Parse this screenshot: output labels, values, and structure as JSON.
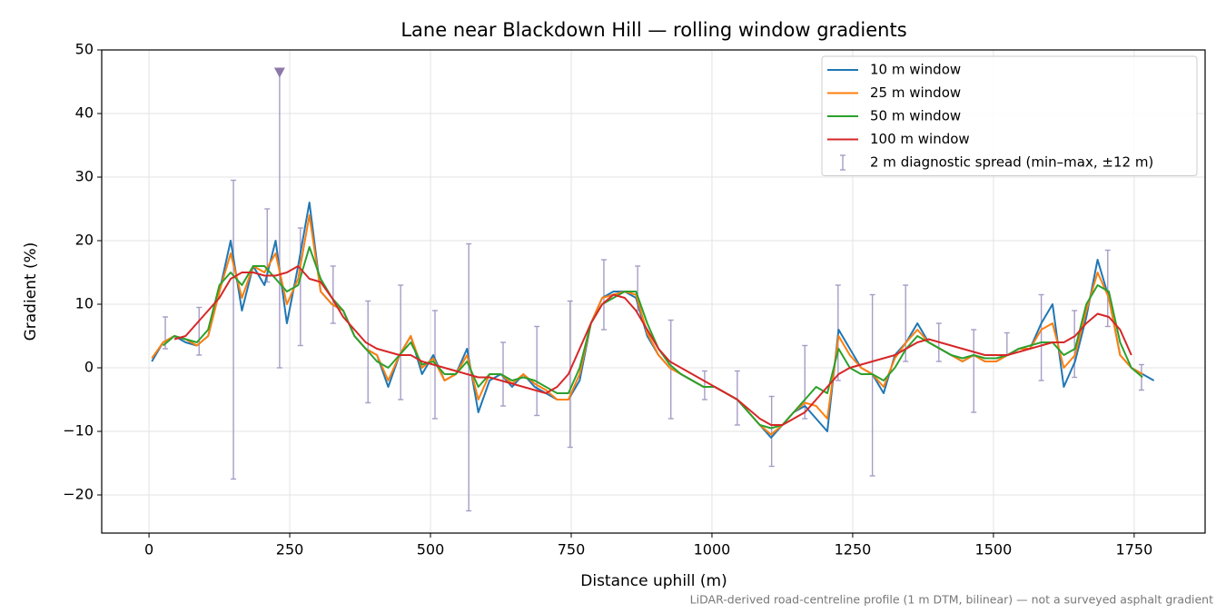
{
  "chart_data": {
    "type": "line",
    "title": "Lane near Blackdown Hill — rolling window gradients",
    "x_label": "Distance uphill (m)",
    "y_label": "Gradient (%)",
    "footnote": "LiDAR-derived road-centreline profile (1 m DTM, bilinear) — not a surveyed asphalt gradient",
    "xlim": [
      -84,
      1876
    ],
    "ylim": [
      -26,
      50
    ],
    "xticks": [
      0,
      250,
      500,
      750,
      1000,
      1250,
      1500,
      1750
    ],
    "yticks": [
      {
        "value": -20,
        "label": "−20"
      },
      {
        "value": -10,
        "label": "−10"
      },
      0,
      10,
      20,
      30,
      40,
      50
    ],
    "grid": true,
    "legend": "upper right",
    "x": [
      5,
      25,
      45,
      65,
      85,
      105,
      125,
      145,
      165,
      185,
      205,
      225,
      245,
      265,
      285,
      305,
      325,
      345,
      365,
      385,
      405,
      425,
      445,
      465,
      485,
      505,
      525,
      545,
      565,
      585,
      605,
      625,
      645,
      665,
      685,
      705,
      725,
      745,
      765,
      785,
      805,
      825,
      845,
      865,
      885,
      905,
      925,
      945,
      965,
      985,
      1005,
      1025,
      1045,
      1065,
      1085,
      1105,
      1125,
      1145,
      1165,
      1185,
      1205,
      1225,
      1245,
      1265,
      1285,
      1305,
      1325,
      1345,
      1365,
      1385,
      1405,
      1425,
      1445,
      1465,
      1485,
      1505,
      1525,
      1545,
      1565,
      1585,
      1605,
      1625,
      1645,
      1665,
      1685,
      1705,
      1725,
      1745,
      1765,
      1785
    ],
    "series": [
      {
        "name": "10 m window",
        "color": "#1f77b4",
        "values": [
          1,
          4,
          5,
          4,
          3.5,
          5,
          12,
          20,
          9,
          16,
          13,
          20,
          7,
          16,
          26,
          12,
          10,
          9,
          5,
          3,
          2,
          -3,
          2,
          5,
          -1,
          2,
          -2,
          -1,
          3,
          -7,
          -2,
          -1,
          -3,
          -1,
          -3,
          -4,
          -5,
          -5,
          -2,
          7,
          11,
          12,
          12,
          11,
          5,
          2,
          0,
          -1,
          -2,
          -3,
          -3,
          -4,
          -5,
          -7,
          -9,
          -11,
          -9,
          -7,
          -6,
          -8,
          -10,
          6,
          3,
          0,
          -1,
          -4,
          2,
          4,
          7,
          4,
          3,
          2,
          1,
          2,
          1,
          1,
          2,
          3,
          3,
          7,
          10,
          -3,
          1,
          8,
          17,
          11,
          2,
          0,
          -1,
          -2
        ]
      },
      {
        "name": "25 m window",
        "color": "#ff7f0e",
        "values": [
          1.5,
          4,
          5,
          4.5,
          3.5,
          5,
          12,
          18,
          11,
          16,
          15,
          18,
          10,
          14,
          24,
          12,
          10,
          9,
          5,
          3,
          2,
          -2,
          2,
          5,
          0,
          1.5,
          -2,
          -1,
          2,
          -5,
          -1,
          -1,
          -2.5,
          -1,
          -2.5,
          -3.5,
          -5,
          -5,
          -1,
          7,
          11,
          11.5,
          12,
          11.5,
          5.5,
          2,
          0,
          -1,
          -2,
          -3,
          -3,
          -4,
          -5,
          -7,
          -9,
          -10.5,
          -9,
          -7,
          -5.5,
          -6,
          -8,
          5,
          2,
          0,
          -1,
          -3,
          1.5,
          4,
          6,
          4,
          3,
          2,
          1,
          2,
          1,
          1,
          2,
          3,
          3,
          6,
          7,
          0,
          2,
          9,
          15,
          11,
          2,
          0,
          -1,
          null
        ]
      },
      {
        "name": "50 m window",
        "color": "#2ca02c",
        "values": [
          null,
          3.5,
          5,
          4.5,
          4,
          6,
          13,
          15,
          13,
          16,
          16,
          14,
          12,
          13,
          19,
          14,
          11,
          9,
          5,
          3,
          1,
          0,
          2,
          4,
          0.5,
          1,
          -1,
          -1,
          1,
          -3,
          -1,
          -1,
          -2,
          -1.5,
          -2,
          -3,
          -4,
          -4,
          0,
          7,
          10,
          11,
          12,
          12,
          7,
          3,
          0.5,
          -1,
          -2,
          -3,
          -3,
          -4,
          -5,
          -7,
          -9,
          -9.5,
          -9,
          -7,
          -5,
          -3,
          -4,
          3,
          0,
          -1,
          -1,
          -2,
          0,
          3,
          5,
          4,
          3,
          2,
          1.5,
          2,
          1.5,
          1.5,
          2,
          3,
          3.5,
          4,
          4,
          2,
          3,
          10,
          13,
          12,
          4,
          0,
          -1.5,
          null
        ]
      },
      {
        "name": "100 m window",
        "color": "#d62728",
        "values": [
          null,
          null,
          4.5,
          5,
          7,
          9,
          11,
          14,
          15,
          15,
          14.5,
          14.5,
          15,
          16,
          14,
          13.5,
          11,
          8,
          6,
          4,
          3,
          2.5,
          2,
          2,
          1,
          0.5,
          0,
          -0.5,
          -1,
          -1.5,
          -1.5,
          -2,
          -2.5,
          -3,
          -3.5,
          -4,
          -3,
          -1,
          3,
          7,
          10,
          11.5,
          11,
          9,
          6,
          3,
          1,
          0,
          -1,
          -2,
          -3,
          -4,
          -5,
          -6.5,
          -8,
          -9,
          -9,
          -8,
          -7,
          -5,
          -3,
          -1,
          0,
          0.5,
          1,
          1.5,
          2,
          3,
          4,
          4.5,
          4,
          3.5,
          3,
          2.5,
          2,
          2,
          2,
          2.5,
          3,
          3.5,
          4,
          4,
          5,
          7,
          8.5,
          8,
          6,
          2,
          null,
          null
        ]
      }
    ],
    "errorbars": {
      "name": "2 m diagnostic spread (min–max, ±12 m)",
      "color": "#a79cc6",
      "x": [
        29,
        89,
        150,
        210,
        232,
        269,
        327,
        389,
        447,
        508,
        568,
        629,
        689,
        748,
        808,
        868,
        927,
        987,
        1045,
        1106,
        1165,
        1224,
        1285,
        1344,
        1403,
        1465,
        1524,
        1585,
        1644,
        1703,
        1763
      ],
      "low": [
        3,
        2,
        -17.5,
        13.5,
        0,
        3.5,
        7,
        -5.5,
        -5,
        -8,
        -22.5,
        -6,
        -7.5,
        -12.5,
        6,
        9,
        -8,
        -5,
        -9,
        -15.5,
        -8,
        -2,
        -17,
        1,
        1,
        -7,
        2,
        -2,
        -1.5,
        6.5,
        -3.5
      ],
      "high": [
        8,
        9.5,
        29.5,
        25,
        46.5,
        22,
        16,
        10.5,
        13,
        9,
        19.5,
        4,
        6.5,
        10.5,
        17,
        16,
        7.5,
        -0.5,
        -0.5,
        -4.5,
        3.5,
        13,
        11.5,
        13,
        7,
        6,
        5.5,
        11.5,
        9,
        18.5,
        0.5
      ]
    }
  }
}
